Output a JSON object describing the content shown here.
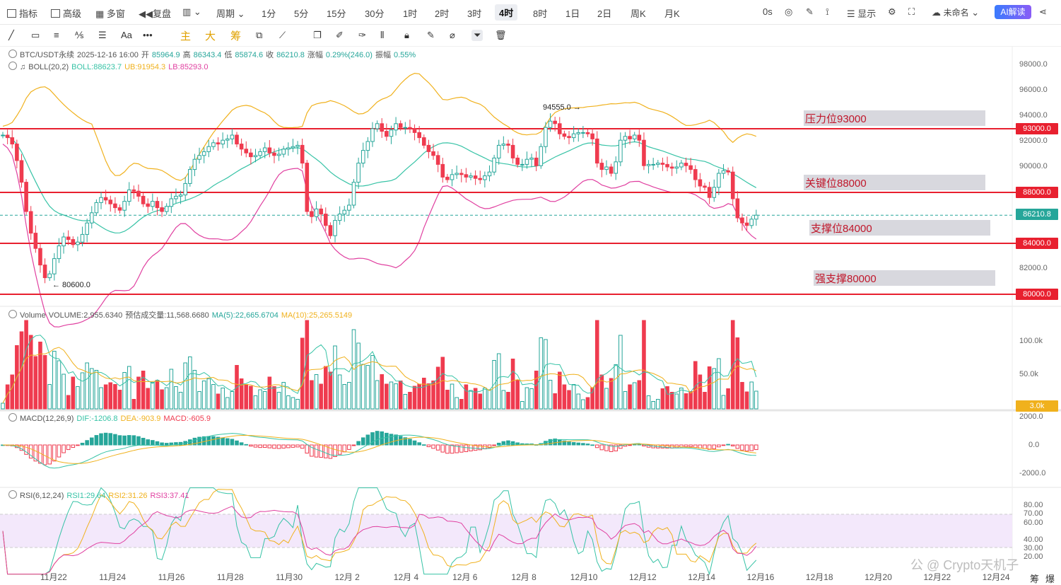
{
  "topbar": {
    "indicators": "指标",
    "advanced": "高级",
    "multi_window": "多窗",
    "replay": "复盘",
    "chart_type": "",
    "period": "周期",
    "intervals": [
      "1分",
      "5分",
      "15分",
      "30分",
      "1时",
      "2时",
      "3时",
      "4时",
      "8时",
      "1日",
      "2日",
      "周K",
      "月K"
    ],
    "active_interval": "4时",
    "zero_s": "0s",
    "display": "显示",
    "unnamed": "未命名",
    "ai_button": "AI解读"
  },
  "toolbar2": {
    "text_tool": "Aa",
    "more": "•••",
    "main": "主",
    "big": "大",
    "chips": "筹"
  },
  "ohlc_legend": {
    "symbol": "BTC/USDT永续",
    "datetime": "2025-12-16 16:00",
    "open_label": "开",
    "open": "85964.9",
    "high_label": "高",
    "high": "86343.4",
    "low_label": "低",
    "low": "85874.6",
    "close_label": "收",
    "close": "86210.8",
    "change_label": "涨幅",
    "change": "0.29%(246.0)",
    "amp_label": "振幅",
    "amp": "0.55%"
  },
  "boll_legend": {
    "name": "BOLL(20,2)",
    "boll": "BOLL:88623.7",
    "ub": "UB:91954.3",
    "lb": "LB:85293.0"
  },
  "volume_legend": {
    "name": "Volume",
    "volume": "VOLUME:2,955.6340",
    "est": "预估成交量:11,568.6680",
    "ma5": "MA(5):22,665.6704",
    "ma10": "MA(10):25,265.5149"
  },
  "macd_legend": {
    "name": "MACD(12,26,9)",
    "dif": "DIF:-1206.8",
    "dea": "DEA:-903.9",
    "macd": "MACD:-605.9"
  },
  "rsi_legend": {
    "name": "RSI(6,12,24)",
    "rsi1": "RSI1:29.64",
    "rsi2": "RSI2:31.26",
    "rsi3": "RSI3:37.41"
  },
  "price_axis": [
    "98000.0",
    "96000.0",
    "94000.0",
    "92000.0",
    "90000.0",
    "82000.0"
  ],
  "price_tags": {
    "p93000": "93000.0",
    "p88000": "88000.0",
    "current": "86210.8",
    "p84000": "84000.0",
    "p80000": "80000.0"
  },
  "volume_axis": [
    "100.0k",
    "50.0k"
  ],
  "volume_tag": "3.0k",
  "macd_axis": [
    "2000.0",
    "0.0",
    "-2000.0"
  ],
  "rsi_axis": [
    "80.00",
    "70.00",
    "60.00",
    "40.00",
    "30.00",
    "20.00"
  ],
  "annotations": {
    "high_mark": "94555.0 →",
    "low_mark": "← 80600.0"
  },
  "zones": {
    "resistance": "压力位93000",
    "key": "关键位88000",
    "support": "支撑位84000",
    "strong_support": "强支撑80000"
  },
  "dates": [
    "11月22",
    "11月24",
    "11月26",
    "11月28",
    "11月30",
    "12月 2",
    "12月 4",
    "12月 6",
    "12月 8",
    "12月10",
    "12月12",
    "12月14",
    "12月16",
    "12月18",
    "12月20",
    "12月22",
    "12月24"
  ],
  "side_labels": {
    "a": "筹",
    "b": "爆"
  },
  "watermark": "公 @ Crypto天机子",
  "colors": {
    "up": "#26a69a",
    "down": "#ef3b4f",
    "level": "#e8202f",
    "boll_mid": "#37c3a6",
    "boll_up": "#f0b11d",
    "boll_low": "#e040a0"
  },
  "chart_data": {
    "type": "candlestick",
    "symbol": "BTC/USDT永续",
    "interval": "4时",
    "y_range": [
      79500,
      98500
    ],
    "horizontal_levels": [
      93000,
      88000,
      84000,
      80000
    ],
    "current_price": 86210.8,
    "marked_high": 94555.0,
    "marked_low": 80600.0,
    "closes": [
      92500,
      92300,
      91800,
      90500,
      88800,
      86500,
      84800,
      83600,
      82300,
      81300,
      81600,
      82800,
      83800,
      84500,
      84300,
      83900,
      84100,
      84700,
      85600,
      86400,
      87200,
      87600,
      87400,
      87100,
      86800,
      86600,
      87300,
      88200,
      88100,
      87700,
      87100,
      86900,
      87300,
      86800,
      86500,
      86900,
      87500,
      87700,
      87800,
      88700,
      89800,
      90600,
      90900,
      91200,
      91600,
      91900,
      91800,
      92100,
      92200,
      92500,
      91800,
      91400,
      91100,
      90800,
      90900,
      91200,
      91500,
      91100,
      90900,
      91000,
      91400,
      91500,
      91600,
      91700,
      90300,
      86500,
      86100,
      86700,
      86300,
      85400,
      84600,
      85800,
      86300,
      86600,
      87000,
      88800,
      90300,
      91300,
      92000,
      93000,
      93400,
      92800,
      92400,
      92900,
      93400,
      93100,
      93100,
      93000,
      92700,
      92300,
      91700,
      91200,
      90900,
      90200,
      89200,
      89000,
      89400,
      89500,
      89400,
      89200,
      89300,
      89100,
      89000,
      89300,
      89600,
      90700,
      91700,
      91800,
      91700,
      90700,
      90200,
      90200,
      90600,
      90700,
      90100,
      91600,
      93100,
      93600,
      93400,
      92600,
      92400,
      92300,
      92600,
      92700,
      92700,
      92600,
      92200,
      90300,
      89800,
      90000,
      89500,
      90400,
      92100,
      92400,
      92200,
      92500,
      92100,
      90100,
      90200,
      90200,
      90300,
      90200,
      90000,
      89900,
      90000,
      90300,
      90100,
      89800,
      89000,
      88500,
      88400,
      87600,
      88400,
      89500,
      89700,
      89600,
      87500,
      86000,
      85600,
      85400,
      85900,
      86210
    ]
  }
}
